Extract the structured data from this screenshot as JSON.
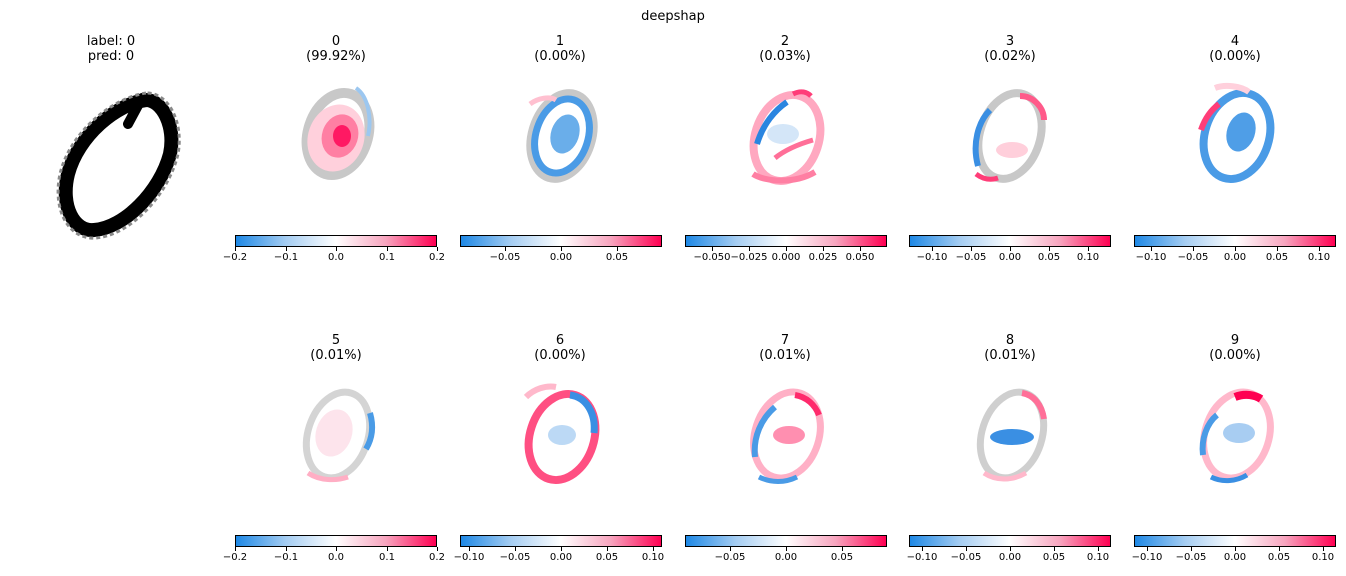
{
  "figure": {
    "suptitle": "deepshap"
  },
  "input": {
    "label_text": "label: 0",
    "pred_text": "pred: 0",
    "colormap": "gray_r"
  },
  "panels": [
    {
      "class": "0",
      "prob": "(99.92%)",
      "ticks": [
        "−0.2",
        "−0.1",
        "0.0",
        "0.1",
        "0.2"
      ],
      "tick_values": [
        -0.2,
        -0.1,
        0.0,
        0.1,
        0.2
      ],
      "vmax": 0.2
    },
    {
      "class": "1",
      "prob": "(0.00%)",
      "ticks": [
        "−0.05",
        "0.00",
        "0.05"
      ],
      "tick_values": [
        -0.05,
        0.0,
        0.05
      ],
      "vmax": 0.09
    },
    {
      "class": "2",
      "prob": "(0.03%)",
      "ticks": [
        "−0.050",
        "−0.025",
        "0.000",
        "0.025",
        "0.050"
      ],
      "tick_values": [
        -0.05,
        -0.025,
        0.0,
        0.025,
        0.05
      ],
      "vmax": 0.068
    },
    {
      "class": "3",
      "prob": "(0.02%)",
      "ticks": [
        "−0.10",
        "−0.05",
        "0.00",
        "0.05",
        "0.10"
      ],
      "tick_values": [
        -0.1,
        -0.05,
        0.0,
        0.05,
        0.1
      ],
      "vmax": 0.13
    },
    {
      "class": "4",
      "prob": "(0.00%)",
      "ticks": [
        "−0.10",
        "−0.05",
        "0.00",
        "0.05",
        "0.10"
      ],
      "tick_values": [
        -0.1,
        -0.05,
        0.0,
        0.05,
        0.1
      ],
      "vmax": 0.12
    },
    {
      "class": "5",
      "prob": "(0.01%)",
      "ticks": [
        "−0.2",
        "−0.1",
        "0.0",
        "0.1",
        "0.2"
      ],
      "tick_values": [
        -0.2,
        -0.1,
        0.0,
        0.1,
        0.2
      ],
      "vmax": 0.2
    },
    {
      "class": "6",
      "prob": "(0.00%)",
      "ticks": [
        "−0.10",
        "−0.05",
        "0.00",
        "0.05",
        "0.10"
      ],
      "tick_values": [
        -0.1,
        -0.05,
        0.0,
        0.05,
        0.1
      ],
      "vmax": 0.11
    },
    {
      "class": "7",
      "prob": "(0.01%)",
      "ticks": [
        "−0.05",
        "0.00",
        "0.05"
      ],
      "tick_values": [
        -0.05,
        0.0,
        0.05
      ],
      "vmax": 0.09
    },
    {
      "class": "8",
      "prob": "(0.01%)",
      "ticks": [
        "−0.10",
        "−0.05",
        "0.00",
        "0.05",
        "0.10"
      ],
      "tick_values": [
        -0.1,
        -0.05,
        0.0,
        0.05,
        0.1
      ],
      "vmax": 0.115
    },
    {
      "class": "9",
      "prob": "(0.00%)",
      "ticks": [
        "−0.10",
        "−0.05",
        "0.00",
        "0.05",
        "0.10"
      ],
      "tick_values": [
        -0.1,
        -0.05,
        0.0,
        0.05,
        0.1
      ],
      "vmax": 0.115
    }
  ],
  "colors": {
    "negative": "#1e88e5",
    "neutral": "#ffffff",
    "positive": "#ff0052",
    "digit": "#000000",
    "ghost": "#c8c8c8"
  }
}
